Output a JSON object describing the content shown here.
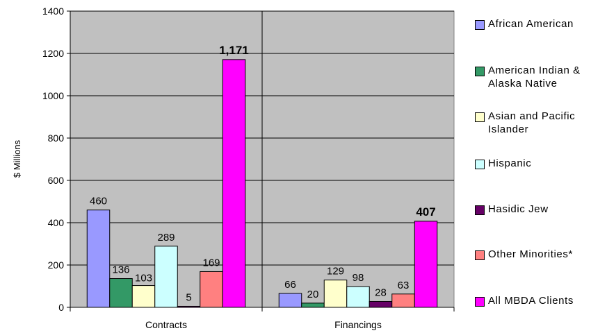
{
  "chart_data": {
    "type": "bar",
    "title": "",
    "xlabel": "",
    "ylabel": "$ Millions",
    "ylim": [
      0,
      1400
    ],
    "yticks": [
      0,
      200,
      400,
      600,
      800,
      1000,
      1200,
      1400
    ],
    "ytick_labels": [
      "0",
      "200",
      "400",
      "600",
      "800",
      "1000",
      "1200",
      "1400"
    ],
    "categories": [
      "Contracts",
      "Financings"
    ],
    "grid": true,
    "legend_position": "right",
    "series": [
      {
        "name": "African American",
        "color": "#9999FF",
        "values": [
          460,
          66
        ],
        "labels": [
          "460",
          "66"
        ]
      },
      {
        "name": "American Indian & Alaska Native",
        "color": "#339966",
        "values": [
          136,
          20
        ],
        "labels": [
          "136",
          "20"
        ]
      },
      {
        "name": "Asian and Pacific Islander",
        "color": "#FFFFCC",
        "values": [
          103,
          129
        ],
        "labels": [
          "103",
          "129"
        ]
      },
      {
        "name": "Hispanic",
        "color": "#CCFFFF",
        "values": [
          289,
          98
        ],
        "labels": [
          "289",
          "98"
        ]
      },
      {
        "name": "Hasidic Jew",
        "color": "#660066",
        "values": [
          5,
          28
        ],
        "labels": [
          "5",
          "28"
        ]
      },
      {
        "name": "Other Minorities*",
        "color": "#FF8080",
        "values": [
          169,
          63
        ],
        "labels": [
          "169",
          "63"
        ]
      },
      {
        "name": "All MBDA Clients",
        "color": "#FF00FF",
        "values": [
          1171,
          407
        ],
        "labels": [
          "1,171",
          "407"
        ]
      }
    ]
  }
}
